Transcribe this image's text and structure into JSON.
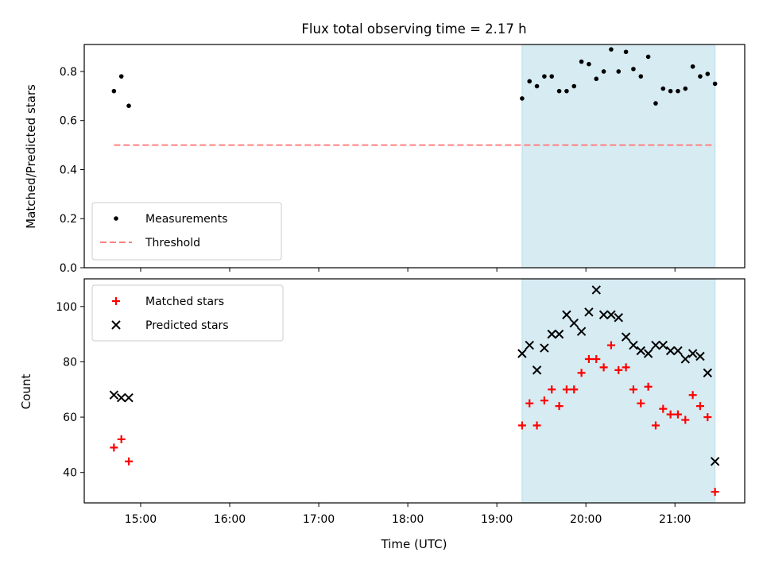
{
  "colors": {
    "band": "#add8e6",
    "threshold": "#ff8080",
    "measurement": "#000000",
    "matched": "#ff0000",
    "predicted": "#000000"
  },
  "chart_data": [
    {
      "type": "scatter",
      "title": "Flux total observing time = 2.17 h",
      "xlabel": "",
      "ylabel": "Matched/Predicted stars",
      "ylim": [
        0,
        0.91
      ],
      "yticks": [
        0.0,
        0.2,
        0.4,
        0.6,
        0.8
      ],
      "ytick_labels": [
        "0.0",
        "0.2",
        "0.4",
        "0.6",
        "0.8"
      ],
      "legend": {
        "position": "lower-left"
      },
      "shaded_interval": [
        "19:17",
        "21:27"
      ],
      "series": [
        {
          "name": "Measurements",
          "marker": "dot",
          "points": [
            [
              "14:42",
              0.72
            ],
            [
              "14:47",
              0.78
            ],
            [
              "14:52",
              0.66
            ],
            [
              "19:17",
              0.69
            ],
            [
              "19:22",
              0.76
            ],
            [
              "19:27",
              0.74
            ],
            [
              "19:32",
              0.78
            ],
            [
              "19:37",
              0.78
            ],
            [
              "19:42",
              0.72
            ],
            [
              "19:47",
              0.72
            ],
            [
              "19:52",
              0.74
            ],
            [
              "19:57",
              0.84
            ],
            [
              "20:02",
              0.83
            ],
            [
              "20:07",
              0.77
            ],
            [
              "20:12",
              0.8
            ],
            [
              "20:17",
              0.89
            ],
            [
              "20:22",
              0.8
            ],
            [
              "20:27",
              0.88
            ],
            [
              "20:32",
              0.81
            ],
            [
              "20:37",
              0.78
            ],
            [
              "20:42",
              0.86
            ],
            [
              "20:47",
              0.67
            ],
            [
              "20:52",
              0.73
            ],
            [
              "20:57",
              0.72
            ],
            [
              "21:02",
              0.72
            ],
            [
              "21:07",
              0.73
            ],
            [
              "21:12",
              0.82
            ],
            [
              "21:17",
              0.78
            ],
            [
              "21:22",
              0.79
            ],
            [
              "21:27",
              0.75
            ]
          ]
        },
        {
          "name": "Threshold",
          "marker": "dashed-line",
          "points": [
            [
              "14:42",
              0.5
            ],
            [
              "21:27",
              0.5
            ]
          ]
        }
      ]
    },
    {
      "type": "scatter",
      "title": "",
      "xlabel": "Time (UTC)",
      "ylabel": "Count",
      "ylim": [
        29,
        110
      ],
      "yticks": [
        40,
        60,
        80,
        100
      ],
      "ytick_labels": [
        "40",
        "60",
        "80",
        "100"
      ],
      "xticks": [
        "15:00",
        "16:00",
        "17:00",
        "18:00",
        "19:00",
        "20:00",
        "21:00"
      ],
      "xlim": [
        "14:22",
        "21:47"
      ],
      "legend": {
        "position": "upper-left"
      },
      "shaded_interval": [
        "19:17",
        "21:27"
      ],
      "series": [
        {
          "name": "Matched stars",
          "marker": "plus",
          "points": [
            [
              "14:42",
              49
            ],
            [
              "14:47",
              52
            ],
            [
              "14:52",
              44
            ],
            [
              "19:17",
              57
            ],
            [
              "19:22",
              65
            ],
            [
              "19:27",
              57
            ],
            [
              "19:32",
              66
            ],
            [
              "19:37",
              70
            ],
            [
              "19:42",
              64
            ],
            [
              "19:47",
              70
            ],
            [
              "19:52",
              70
            ],
            [
              "19:57",
              76
            ],
            [
              "20:02",
              81
            ],
            [
              "20:07",
              81
            ],
            [
              "20:12",
              78
            ],
            [
              "20:17",
              86
            ],
            [
              "20:22",
              77
            ],
            [
              "20:27",
              78
            ],
            [
              "20:32",
              70
            ],
            [
              "20:37",
              65
            ],
            [
              "20:42",
              71
            ],
            [
              "20:47",
              57
            ],
            [
              "20:52",
              63
            ],
            [
              "20:57",
              61
            ],
            [
              "21:02",
              61
            ],
            [
              "21:07",
              59
            ],
            [
              "21:12",
              68
            ],
            [
              "21:17",
              64
            ],
            [
              "21:22",
              60
            ],
            [
              "21:27",
              33
            ]
          ]
        },
        {
          "name": "Predicted stars",
          "marker": "x",
          "points": [
            [
              "14:42",
              68
            ],
            [
              "14:47",
              67
            ],
            [
              "14:52",
              67
            ],
            [
              "19:17",
              83
            ],
            [
              "19:22",
              86
            ],
            [
              "19:27",
              77
            ],
            [
              "19:32",
              85
            ],
            [
              "19:37",
              90
            ],
            [
              "19:42",
              90
            ],
            [
              "19:47",
              97
            ],
            [
              "19:52",
              94
            ],
            [
              "19:57",
              91
            ],
            [
              "20:02",
              98
            ],
            [
              "20:07",
              106
            ],
            [
              "20:12",
              97
            ],
            [
              "20:17",
              97
            ],
            [
              "20:22",
              96
            ],
            [
              "20:27",
              89
            ],
            [
              "20:32",
              86
            ],
            [
              "20:37",
              84
            ],
            [
              "20:42",
              83
            ],
            [
              "20:47",
              86
            ],
            [
              "20:52",
              86
            ],
            [
              "20:57",
              84
            ],
            [
              "21:02",
              84
            ],
            [
              "21:07",
              81
            ],
            [
              "21:12",
              83
            ],
            [
              "21:17",
              82
            ],
            [
              "21:22",
              76
            ],
            [
              "21:27",
              44
            ]
          ]
        }
      ]
    }
  ]
}
